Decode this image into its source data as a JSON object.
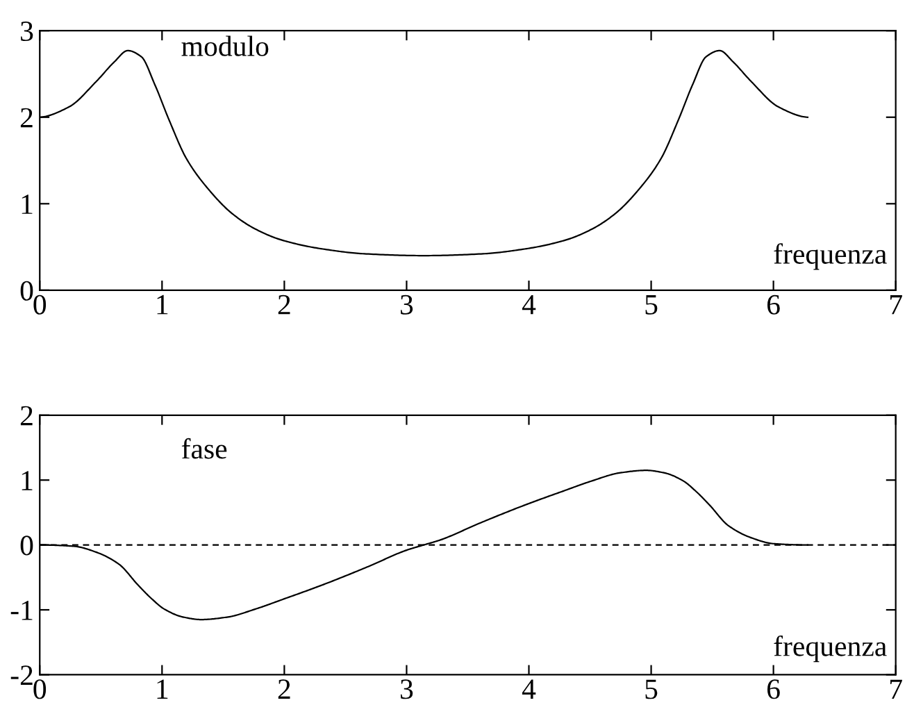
{
  "chart_data": [
    {
      "type": "line",
      "title": "modulo",
      "xlabel": "frequenza",
      "x": [
        0,
        0.24,
        0.46,
        0.61,
        0.72,
        0.83,
        0.94,
        1.06,
        1.2,
        1.39,
        1.57,
        1.76,
        1.98,
        2.3,
        2.67,
        3.14,
        3.61,
        3.98,
        4.3,
        4.52,
        4.71,
        4.89,
        5.08,
        5.22,
        5.34,
        5.45,
        5.56,
        5.67,
        5.82,
        6.04,
        6.28
      ],
      "series": [
        {
          "color": "#000000",
          "values": [
            2.0,
            2.12,
            2.41,
            2.64,
            2.77,
            2.7,
            2.38,
            1.96,
            1.52,
            1.15,
            0.89,
            0.71,
            0.58,
            0.48,
            0.42,
            0.4,
            0.42,
            0.48,
            0.58,
            0.71,
            0.89,
            1.15,
            1.52,
            1.96,
            2.38,
            2.7,
            2.77,
            2.64,
            2.41,
            2.12,
            2.0
          ]
        }
      ],
      "xlim": [
        0,
        7
      ],
      "xticks": [
        0,
        1,
        2,
        3,
        4,
        5,
        6,
        7
      ],
      "ylim": [
        0,
        3
      ],
      "yticks": [
        0,
        1,
        2,
        3
      ]
    },
    {
      "type": "line",
      "title": "fase",
      "xlabel": "frequenza",
      "x": [
        0,
        0.28,
        0.46,
        0.65,
        0.8,
        0.91,
        1.02,
        1.17,
        1.32,
        1.54,
        1.76,
        2.0,
        2.32,
        2.69,
        3.0,
        3.14,
        3.28,
        3.59,
        3.96,
        4.28,
        4.52,
        4.74,
        4.96,
        5.11,
        5.26,
        5.37,
        5.48,
        5.63,
        5.82,
        6.0,
        6.28
      ],
      "series": [
        {
          "color": "#000000",
          "values": [
            0,
            -0.02,
            -0.11,
            -0.3,
            -0.61,
            -0.82,
            -0.99,
            -1.11,
            -1.15,
            -1.11,
            -0.99,
            -0.83,
            -0.61,
            -0.33,
            -0.08,
            0,
            0.08,
            0.33,
            0.61,
            0.83,
            0.99,
            1.11,
            1.15,
            1.11,
            0.99,
            0.82,
            0.61,
            0.3,
            0.11,
            0.02,
            0
          ]
        }
      ],
      "xlim": [
        0,
        7
      ],
      "xticks": [
        0,
        1,
        2,
        3,
        4,
        5,
        6,
        7
      ],
      "ylim": [
        -2,
        2
      ],
      "yticks": [
        -2,
        -1,
        0,
        1,
        2
      ],
      "ref_lines": [
        {
          "axis": "y",
          "value": 0,
          "color": "#000000",
          "line_style": "dashed"
        }
      ]
    }
  ]
}
